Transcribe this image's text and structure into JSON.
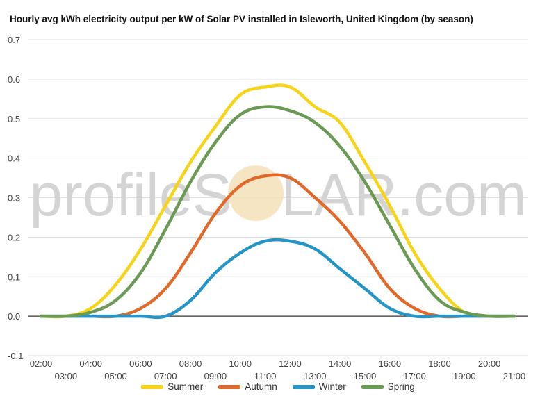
{
  "watermark": {
    "text_left": "profileS",
    "text_right": "LAR.com"
  },
  "chart_data": {
    "type": "line",
    "title": "Hourly avg kWh electricity output per kW of Solar PV installed in Isleworth, United Kingdom (by season)",
    "xlabel": "",
    "ylabel": "",
    "x": [
      "02:00",
      "03:00",
      "04:00",
      "05:00",
      "06:00",
      "07:00",
      "08:00",
      "09:00",
      "10:00",
      "11:00",
      "12:00",
      "13:00",
      "14:00",
      "15:00",
      "16:00",
      "17:00",
      "18:00",
      "19:00",
      "20:00",
      "21:00"
    ],
    "xlim": [
      "02:00",
      "21:00"
    ],
    "ylim": [
      -0.1,
      0.7
    ],
    "yticks": [
      "0.7",
      "0.6",
      "0.5",
      "0.4",
      "0.3",
      "0.2",
      "0.1",
      "0.0",
      "-0.1"
    ],
    "grid": true,
    "legend_position": "bottom",
    "series": [
      {
        "name": "Summer",
        "color": "#f7d417",
        "values": [
          0.0,
          0.0,
          0.02,
          0.08,
          0.17,
          0.28,
          0.39,
          0.48,
          0.56,
          0.58,
          0.58,
          0.53,
          0.49,
          0.39,
          0.28,
          0.16,
          0.07,
          0.01,
          0.0,
          0.0
        ]
      },
      {
        "name": "Autumn",
        "color": "#e0692a",
        "values": [
          0.0,
          0.0,
          0.0,
          0.0,
          0.02,
          0.07,
          0.16,
          0.26,
          0.33,
          0.355,
          0.35,
          0.3,
          0.24,
          0.16,
          0.07,
          0.02,
          0.0,
          0.0,
          0.0,
          0.0
        ]
      },
      {
        "name": "Winter",
        "color": "#2594c6",
        "values": [
          0.0,
          0.0,
          0.0,
          0.0,
          0.0,
          0.0,
          0.04,
          0.11,
          0.16,
          0.19,
          0.19,
          0.17,
          0.12,
          0.07,
          0.02,
          0.0,
          0.0,
          0.0,
          0.0,
          0.0
        ]
      },
      {
        "name": "Spring",
        "color": "#6b9a54",
        "values": [
          0.0,
          0.0,
          0.01,
          0.04,
          0.11,
          0.22,
          0.34,
          0.44,
          0.51,
          0.53,
          0.52,
          0.49,
          0.43,
          0.34,
          0.23,
          0.12,
          0.04,
          0.01,
          0.0,
          0.0
        ]
      }
    ]
  }
}
